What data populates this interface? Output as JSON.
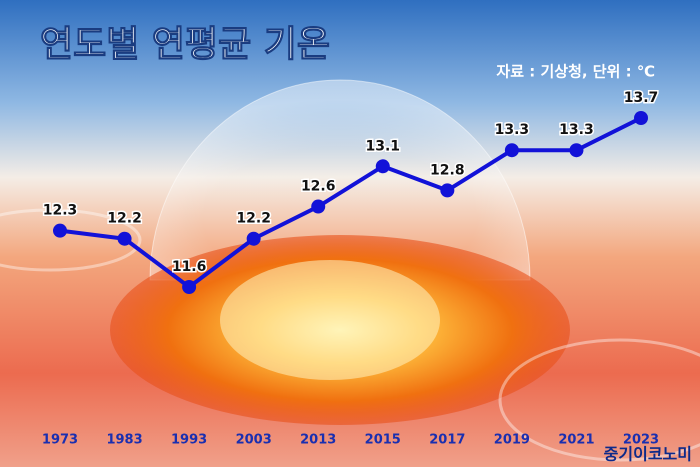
{
  "chart_data": {
    "type": "line",
    "title": "연도별 연평균 기온",
    "subtitle": "자료 : 기상청, 단위 : ℃",
    "credit": "중기이코노미",
    "categories": [
      "1973",
      "1983",
      "1993",
      "2003",
      "2013",
      "2015",
      "2017",
      "2019",
      "2021",
      "2023"
    ],
    "values": [
      12.3,
      12.2,
      11.6,
      12.2,
      12.6,
      13.1,
      12.8,
      13.3,
      13.3,
      13.7
    ],
    "color": "#1212d8"
  }
}
